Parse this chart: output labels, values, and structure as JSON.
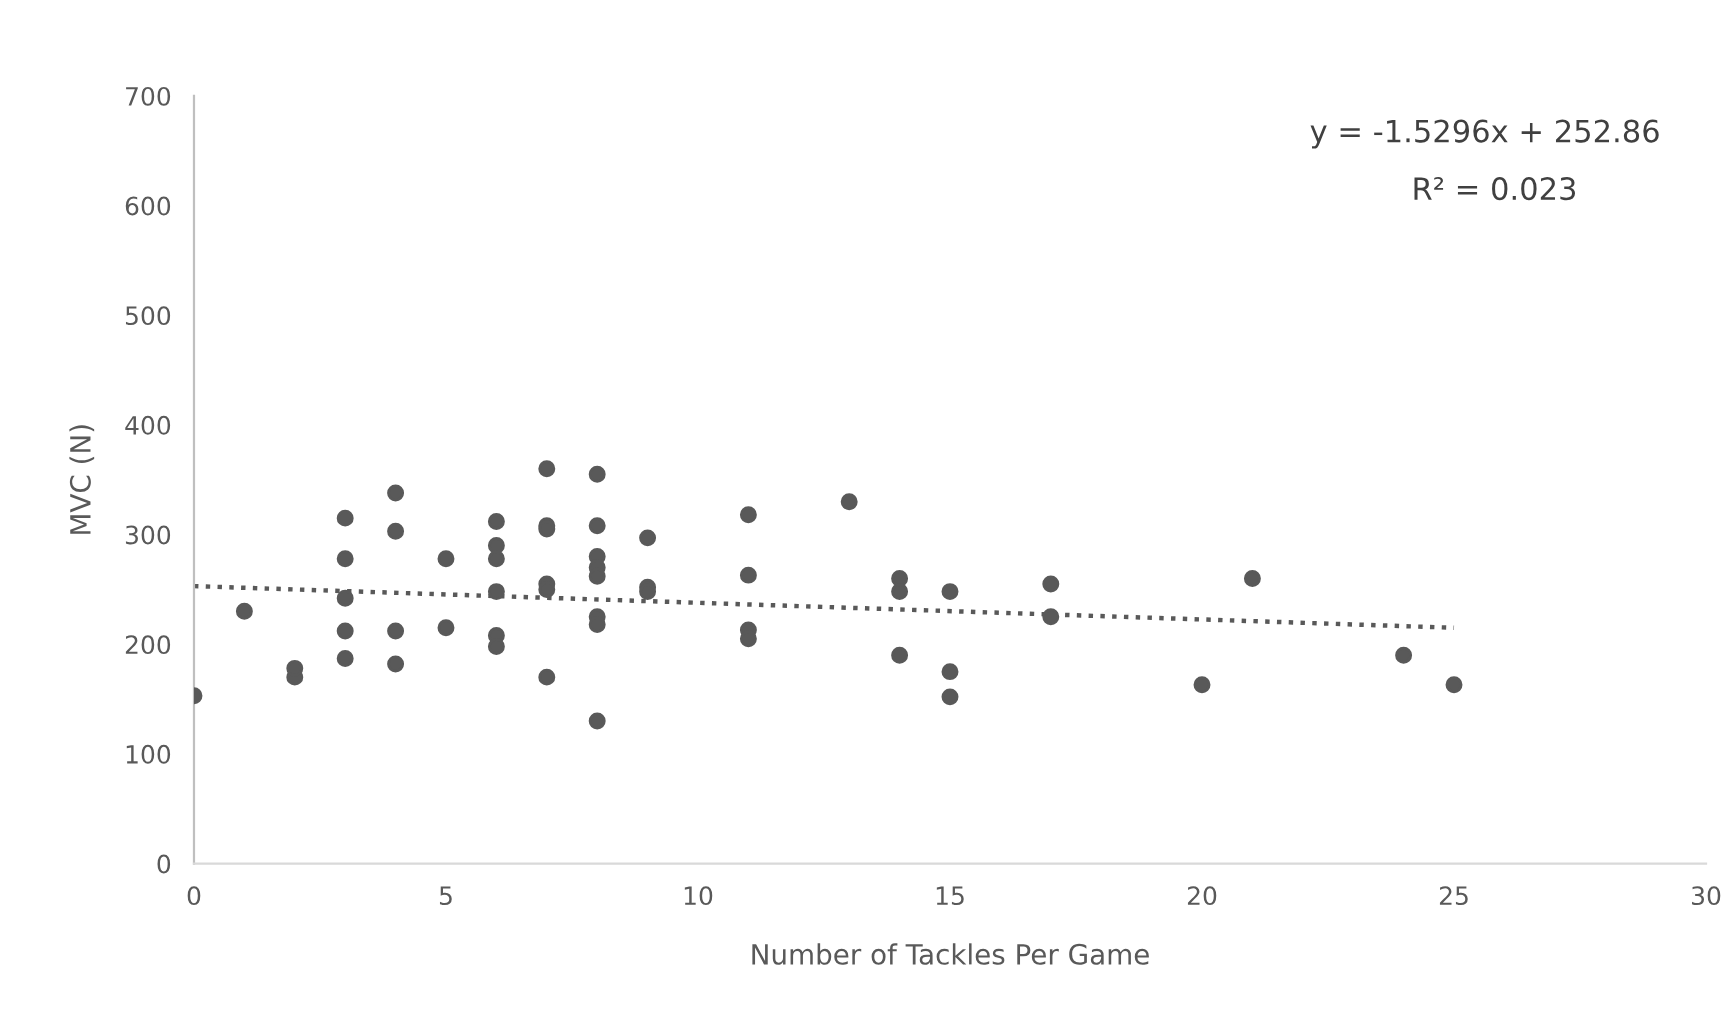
{
  "chart_data": {
    "type": "scatter",
    "xlabel": "Number of Tackles Per Game",
    "ylabel": "MVC (N)",
    "xlim": [
      0,
      30
    ],
    "xticks": [
      0,
      5,
      10,
      15,
      20,
      25,
      30
    ],
    "ylim": [
      0,
      700
    ],
    "yticks": [
      0,
      100,
      200,
      300,
      400,
      500,
      600,
      700
    ],
    "grid": false,
    "marker": "circle",
    "annotations": [
      "y = -1.5296x + 252.86",
      "R² = 0.023"
    ],
    "series": [
      {
        "color": "#595959",
        "x": [
          0,
          1,
          2,
          2,
          3,
          3,
          3,
          3,
          3,
          4,
          4,
          4,
          4,
          5,
          5,
          6,
          6,
          6,
          6,
          6,
          6,
          7,
          7,
          7,
          7,
          7,
          7,
          8,
          8,
          8,
          8,
          8,
          8,
          8,
          8,
          9,
          9,
          9,
          11,
          11,
          11,
          11,
          13,
          14,
          14,
          14,
          15,
          15,
          15,
          17,
          17,
          20,
          21,
          24,
          25
        ],
        "values": [
          153,
          230,
          170,
          178,
          315,
          278,
          242,
          212,
          187,
          338,
          303,
          212,
          182,
          278,
          215,
          312,
          290,
          278,
          248,
          208,
          198,
          360,
          308,
          305,
          255,
          250,
          170,
          355,
          308,
          280,
          270,
          262,
          225,
          218,
          130,
          297,
          252,
          248,
          318,
          263,
          213,
          205,
          330,
          260,
          248,
          190,
          248,
          175,
          152,
          255,
          225,
          163,
          260,
          190,
          163
        ]
      },
      {
        "type": "line",
        "color": "#595959",
        "line_style": "dotted",
        "marker": "none",
        "x": [
          0,
          25
        ],
        "values": [
          253,
          215
        ]
      }
    ]
  }
}
